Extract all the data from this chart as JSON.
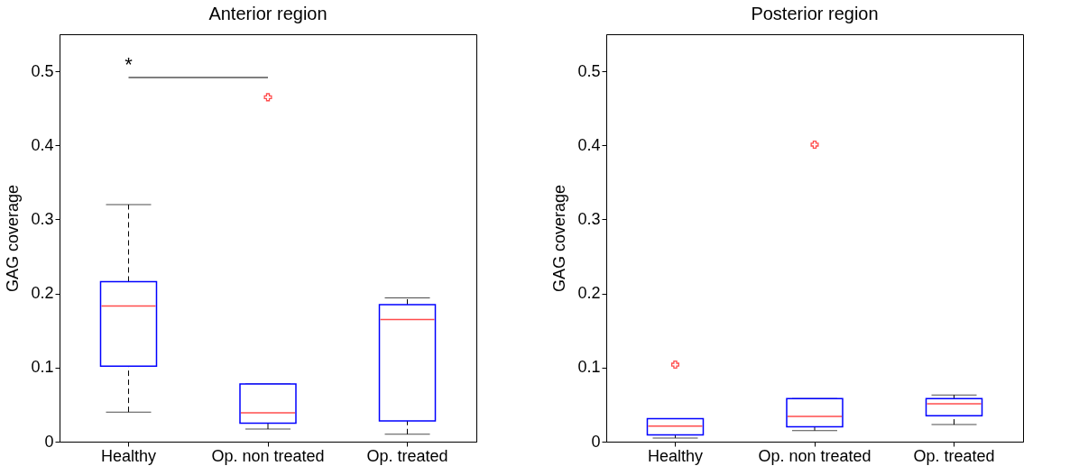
{
  "chart_data": [
    {
      "type": "box",
      "title": "Anterior region",
      "ylabel": "GAG coverage",
      "categories": [
        "Healthy",
        "Op. non treated",
        "Op. treated"
      ],
      "ylim": [
        0,
        0.55
      ],
      "yticks": [
        0,
        0.1,
        0.2,
        0.3,
        0.4,
        0.5
      ],
      "grid": false,
      "series": [
        {
          "color": "#0000ff",
          "boxes": [
            {
              "low": 0.04,
              "q1": 0.102,
              "median": 0.183,
              "q3": 0.216,
              "high": 0.32
            },
            {
              "low": 0.017,
              "q1": 0.025,
              "median": 0.039,
              "q3": 0.078,
              "high": 0.078,
              "outliers": [
                0.465
              ]
            },
            {
              "low": 0.01,
              "q1": 0.028,
              "median": 0.165,
              "q3": 0.185,
              "high": 0.194
            }
          ]
        }
      ],
      "annotations": [
        "*"
      ]
    },
    {
      "type": "box",
      "title": "Posterior region",
      "ylabel": "GAG coverage",
      "categories": [
        "Healthy",
        "Op. non treated",
        "Op. treated"
      ],
      "ylim": [
        0,
        0.55
      ],
      "yticks": [
        0,
        0.1,
        0.2,
        0.3,
        0.4,
        0.5
      ],
      "grid": false,
      "series": [
        {
          "color": "#0000ff",
          "boxes": [
            {
              "low": 0.005,
              "q1": 0.009,
              "median": 0.021,
              "q3": 0.031,
              "high": 0.031,
              "outliers": [
                0.104
              ]
            },
            {
              "low": 0.015,
              "q1": 0.02,
              "median": 0.034,
              "q3": 0.058,
              "high": 0.058,
              "outliers": [
                0.401
              ]
            },
            {
              "low": 0.023,
              "q1": 0.035,
              "median": 0.051,
              "q3": 0.058,
              "high": 0.063
            }
          ]
        }
      ]
    }
  ]
}
